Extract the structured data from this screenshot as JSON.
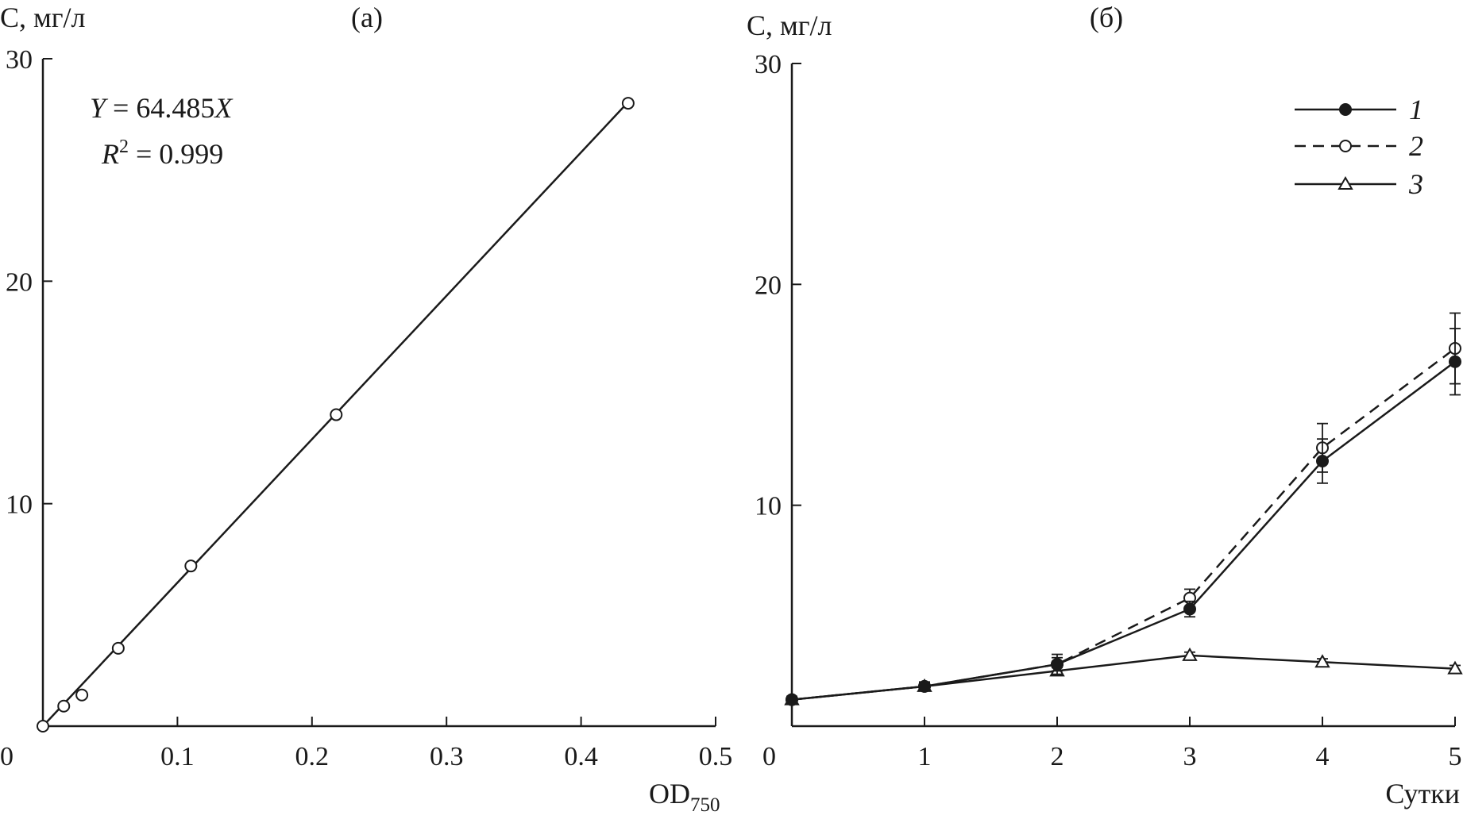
{
  "chart_data": [
    {
      "type": "line",
      "panel": "(a)",
      "ylabel": "C, мг/л",
      "xlabel": "OD",
      "xlabel_sub": "750",
      "xlim": [
        0,
        0.5
      ],
      "ylim": [
        0,
        30
      ],
      "xticks": [
        0,
        0.1,
        0.2,
        0.3,
        0.4,
        0.5
      ],
      "xtick_labels": [
        "0",
        "0.1",
        "0.2",
        "0.3",
        "0.4",
        "0.5"
      ],
      "yticks": [
        10,
        20,
        30
      ],
      "ytick_labels": [
        "10",
        "20",
        "30"
      ],
      "equation": {
        "y": "Y",
        "rest": " = 64.485",
        "x": "X"
      },
      "r2": {
        "r": "R",
        "sup": "2",
        "rest": " = 0.999"
      },
      "points": [
        {
          "x": 0.0,
          "y": 0.0
        },
        {
          "x": 0.0155,
          "y": 0.9
        },
        {
          "x": 0.029,
          "y": 1.4
        },
        {
          "x": 0.056,
          "y": 3.5
        },
        {
          "x": 0.11,
          "y": 7.2
        },
        {
          "x": 0.218,
          "y": 14.0
        },
        {
          "x": 0.435,
          "y": 28.0
        }
      ],
      "fit": {
        "slope": 64.485,
        "x_range": [
          0.0,
          0.435
        ]
      }
    },
    {
      "type": "line",
      "panel": "(б)",
      "ylabel": "C, мг/л",
      "xlabel": "Сутки",
      "xlim": [
        0,
        5
      ],
      "ylim": [
        0,
        30
      ],
      "xticks": [
        0,
        1,
        2,
        3,
        4,
        5
      ],
      "xtick_labels": [
        "0",
        "1",
        "2",
        "3",
        "4",
        "5"
      ],
      "yticks": [
        10,
        20,
        30
      ],
      "ytick_labels": [
        "10",
        "20",
        "30"
      ],
      "legend_position": "top-right",
      "series": [
        {
          "name": "1",
          "marker": "filled-circle",
          "line": "solid",
          "x": [
            0,
            1,
            2,
            3,
            4,
            5
          ],
          "y": [
            1.2,
            1.8,
            2.8,
            5.3,
            12.0,
            16.5
          ],
          "err": [
            0.15,
            0.2,
            0.45,
            0.35,
            1.0,
            1.5
          ]
        },
        {
          "name": "2",
          "marker": "open-circle",
          "line": "dashed",
          "x": [
            0,
            1,
            2,
            3,
            4,
            5
          ],
          "y": [
            1.2,
            1.8,
            2.8,
            5.8,
            12.6,
            17.1
          ],
          "err": [
            0.15,
            0.2,
            0.3,
            0.4,
            1.1,
            1.6
          ]
        },
        {
          "name": "3",
          "marker": "open-triangle",
          "line": "solid",
          "x": [
            0,
            1,
            2,
            3,
            4,
            5
          ],
          "y": [
            1.2,
            1.8,
            2.5,
            3.2,
            2.9,
            2.6
          ],
          "err": [
            0.1,
            0.15,
            0.15,
            0.15,
            0.15,
            0.15
          ]
        }
      ]
    }
  ],
  "colors": {
    "ink": "#1a1a1a",
    "background": "#ffffff"
  }
}
